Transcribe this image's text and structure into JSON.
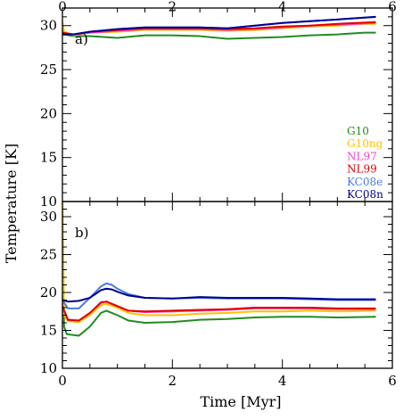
{
  "chart_data": {
    "type": "line",
    "xlabel": "Time [Myr]",
    "ylabel": "Temperature [K]",
    "xlim": [
      0,
      6
    ],
    "x_ticks": [
      "0",
      "2",
      "4",
      "6"
    ],
    "top_x_ticks": [
      "0",
      "2",
      "4",
      "6"
    ],
    "legend": {
      "placement": "right, lower part of panel a",
      "entries": [
        {
          "label": "G10",
          "color": "#228B22"
        },
        {
          "label": "G10ng",
          "color": "#FFC200"
        },
        {
          "label": "NL97",
          "color": "#FF40C0"
        },
        {
          "label": "NL99",
          "color": "#E00000"
        },
        {
          "label": "KC08e",
          "color": "#4A7BE0"
        },
        {
          "label": "KC08n",
          "color": "#000090"
        }
      ]
    },
    "panels": [
      {
        "label": "a)",
        "ylim": [
          10,
          32
        ],
        "y_ticks": [
          "10",
          "15",
          "20",
          "25",
          "30"
        ],
        "series": [
          {
            "name": "G10",
            "color": "#228B22",
            "points": [
              [
                0,
                29.8
              ],
              [
                0.03,
                29.0
              ],
              [
                0.2,
                28.8
              ],
              [
                0.5,
                28.8
              ],
              [
                1.0,
                28.6
              ],
              [
                1.5,
                28.9
              ],
              [
                2.0,
                28.9
              ],
              [
                2.5,
                28.8
              ],
              [
                3.0,
                28.5
              ],
              [
                3.5,
                28.6
              ],
              [
                4.0,
                28.7
              ],
              [
                4.5,
                28.9
              ],
              [
                5.0,
                29.0
              ],
              [
                5.5,
                29.2
              ],
              [
                5.7,
                29.2
              ]
            ]
          },
          {
            "name": "G10ng",
            "color": "#FFC200",
            "points": [
              [
                0,
                30.5
              ],
              [
                0.03,
                29.3
              ],
              [
                0.2,
                28.9
              ],
              [
                0.5,
                29.2
              ],
              [
                1.0,
                29.3
              ],
              [
                1.5,
                29.5
              ],
              [
                2.0,
                29.5
              ],
              [
                2.5,
                29.5
              ],
              [
                3.0,
                29.4
              ],
              [
                3.5,
                29.5
              ],
              [
                4.0,
                29.7
              ],
              [
                4.5,
                29.9
              ],
              [
                5.0,
                30.0
              ],
              [
                5.5,
                30.2
              ],
              [
                5.7,
                30.2
              ]
            ]
          },
          {
            "name": "NL97",
            "color": "#FF40C0",
            "points": [
              [
                0,
                29.2
              ],
              [
                0.2,
                29.0
              ],
              [
                0.5,
                29.2
              ],
              [
                1.0,
                29.4
              ],
              [
                1.5,
                29.6
              ],
              [
                2.0,
                29.6
              ],
              [
                2.5,
                29.6
              ],
              [
                3.0,
                29.5
              ],
              [
                3.5,
                29.6
              ],
              [
                4.0,
                29.8
              ],
              [
                4.5,
                30.0
              ],
              [
                5.0,
                30.1
              ],
              [
                5.7,
                30.3
              ]
            ]
          },
          {
            "name": "NL99",
            "color": "#E00000",
            "points": [
              [
                0,
                29.2
              ],
              [
                0.2,
                29.0
              ],
              [
                0.5,
                29.3
              ],
              [
                1.0,
                29.5
              ],
              [
                1.5,
                29.7
              ],
              [
                2.0,
                29.7
              ],
              [
                2.5,
                29.7
              ],
              [
                3.0,
                29.6
              ],
              [
                3.5,
                29.7
              ],
              [
                4.0,
                29.9
              ],
              [
                4.5,
                30.0
              ],
              [
                5.0,
                30.2
              ],
              [
                5.7,
                30.4
              ]
            ]
          },
          {
            "name": "KC08e",
            "color": "#4A7BE0",
            "points": [
              [
                0,
                29.0
              ],
              [
                0.2,
                29.0
              ],
              [
                0.5,
                29.3
              ],
              [
                1.0,
                29.6
              ],
              [
                1.5,
                29.8
              ],
              [
                2.0,
                29.8
              ],
              [
                2.5,
                29.8
              ],
              [
                3.0,
                29.7
              ],
              [
                3.5,
                30.0
              ],
              [
                4.0,
                30.3
              ],
              [
                4.5,
                30.5
              ],
              [
                5.0,
                30.7
              ],
              [
                5.7,
                31.0
              ]
            ]
          },
          {
            "name": "KC08n",
            "color": "#000090",
            "points": [
              [
                0,
                29.0
              ],
              [
                0.2,
                29.0
              ],
              [
                0.5,
                29.3
              ],
              [
                1.0,
                29.6
              ],
              [
                1.5,
                29.8
              ],
              [
                2.0,
                29.8
              ],
              [
                2.5,
                29.8
              ],
              [
                3.0,
                29.7
              ],
              [
                3.5,
                30.0
              ],
              [
                4.0,
                30.3
              ],
              [
                4.5,
                30.5
              ],
              [
                5.0,
                30.7
              ],
              [
                5.7,
                31.0
              ]
            ]
          }
        ]
      },
      {
        "label": "b)",
        "ylim": [
          10,
          32
        ],
        "y_ticks": [
          "10",
          "15",
          "20",
          "25",
          "30"
        ],
        "series": [
          {
            "name": "G10",
            "color": "#228B22",
            "points": [
              [
                0,
                32
              ],
              [
                0.03,
                15.5
              ],
              [
                0.08,
                14.5
              ],
              [
                0.3,
                14.3
              ],
              [
                0.5,
                15.5
              ],
              [
                0.7,
                17.3
              ],
              [
                0.8,
                17.6
              ],
              [
                1.0,
                17.0
              ],
              [
                1.2,
                16.3
              ],
              [
                1.5,
                16.0
              ],
              [
                2.0,
                16.1
              ],
              [
                2.5,
                16.4
              ],
              [
                3.0,
                16.5
              ],
              [
                3.5,
                16.7
              ],
              [
                4.0,
                16.8
              ],
              [
                4.5,
                16.8
              ],
              [
                5.0,
                16.7
              ],
              [
                5.7,
                16.8
              ]
            ]
          },
          {
            "name": "G10ng",
            "color": "#FFC200",
            "points": [
              [
                0,
                32
              ],
              [
                0.03,
                17.0
              ],
              [
                0.1,
                16.2
              ],
              [
                0.3,
                16.1
              ],
              [
                0.5,
                17.0
              ],
              [
                0.7,
                18.3
              ],
              [
                0.8,
                18.5
              ],
              [
                1.0,
                18.0
              ],
              [
                1.2,
                17.3
              ],
              [
                1.5,
                17.0
              ],
              [
                2.0,
                17.0
              ],
              [
                2.5,
                17.2
              ],
              [
                3.0,
                17.3
              ],
              [
                3.5,
                17.5
              ],
              [
                4.0,
                17.5
              ],
              [
                4.5,
                17.6
              ],
              [
                5.0,
                17.5
              ],
              [
                5.7,
                17.6
              ]
            ]
          },
          {
            "name": "NL97",
            "color": "#FF40C0",
            "points": [
              [
                0,
                18.0
              ],
              [
                0.1,
                16.4
              ],
              [
                0.3,
                16.3
              ],
              [
                0.5,
                17.3
              ],
              [
                0.7,
                18.6
              ],
              [
                0.8,
                18.8
              ],
              [
                1.0,
                18.2
              ],
              [
                1.2,
                17.6
              ],
              [
                1.5,
                17.4
              ],
              [
                2.0,
                17.5
              ],
              [
                2.5,
                17.6
              ],
              [
                3.0,
                17.7
              ],
              [
                3.5,
                17.9
              ],
              [
                4.0,
                17.9
              ],
              [
                4.5,
                17.9
              ],
              [
                5.0,
                17.8
              ],
              [
                5.7,
                17.8
              ]
            ]
          },
          {
            "name": "NL99",
            "color": "#E00000",
            "points": [
              [
                0,
                18.2
              ],
              [
                0.1,
                16.4
              ],
              [
                0.3,
                16.3
              ],
              [
                0.5,
                17.3
              ],
              [
                0.7,
                18.7
              ],
              [
                0.8,
                18.8
              ],
              [
                1.0,
                18.2
              ],
              [
                1.2,
                17.6
              ],
              [
                1.5,
                17.5
              ],
              [
                2.0,
                17.6
              ],
              [
                2.5,
                17.7
              ],
              [
                3.0,
                17.8
              ],
              [
                3.5,
                18.0
              ],
              [
                4.0,
                18.0
              ],
              [
                4.5,
                18.0
              ],
              [
                5.0,
                17.9
              ],
              [
                5.7,
                17.9
              ]
            ]
          },
          {
            "name": "KC08e",
            "color": "#4A7BE0",
            "points": [
              [
                0,
                19.0
              ],
              [
                0.1,
                17.9
              ],
              [
                0.3,
                17.9
              ],
              [
                0.5,
                19.3
              ],
              [
                0.7,
                20.8
              ],
              [
                0.8,
                21.2
              ],
              [
                0.9,
                21.0
              ],
              [
                1.0,
                20.5
              ],
              [
                1.2,
                19.8
              ],
              [
                1.5,
                19.3
              ],
              [
                2.0,
                19.2
              ],
              [
                2.5,
                19.3
              ],
              [
                3.0,
                19.2
              ],
              [
                3.5,
                19.2
              ],
              [
                4.0,
                19.2
              ],
              [
                4.5,
                19.1
              ],
              [
                5.0,
                19.0
              ],
              [
                5.7,
                19.0
              ]
            ]
          },
          {
            "name": "KC08n",
            "color": "#000090",
            "points": [
              [
                0,
                19.0
              ],
              [
                0.1,
                18.8
              ],
              [
                0.3,
                18.9
              ],
              [
                0.5,
                19.3
              ],
              [
                0.7,
                20.3
              ],
              [
                0.8,
                20.5
              ],
              [
                0.9,
                20.4
              ],
              [
                1.0,
                20.1
              ],
              [
                1.2,
                19.6
              ],
              [
                1.5,
                19.3
              ],
              [
                2.0,
                19.2
              ],
              [
                2.5,
                19.4
              ],
              [
                3.0,
                19.3
              ],
              [
                3.5,
                19.3
              ],
              [
                4.0,
                19.3
              ],
              [
                4.5,
                19.2
              ],
              [
                5.0,
                19.1
              ],
              [
                5.7,
                19.1
              ]
            ]
          }
        ]
      }
    ]
  }
}
